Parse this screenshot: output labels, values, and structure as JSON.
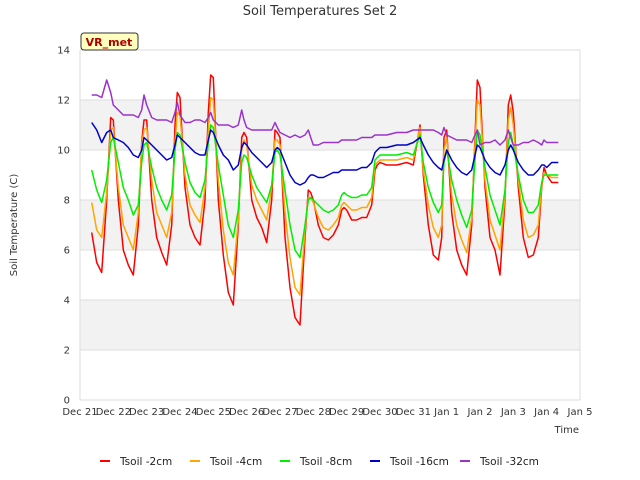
{
  "chart_data": {
    "type": "line",
    "title": "Soil Temperatures Set 2",
    "xlabel": "Time",
    "ylabel": "Soil Temperature (C)",
    "badge": "VR_met",
    "xlim": [
      0,
      15
    ],
    "ylim": [
      0,
      14
    ],
    "yticks": [
      0,
      2,
      4,
      6,
      8,
      10,
      12,
      14
    ],
    "xtick_labels": [
      "Dec 21",
      "Dec 22",
      "Dec 23",
      "Dec 24",
      "Dec 25",
      "Dec 26",
      "Dec 27",
      "Dec 28",
      "Dec 29",
      "Dec 30",
      "Dec 31",
      "Jan 1",
      "Jan 2",
      "Jan 3",
      "Jan 4",
      "Jan 5"
    ],
    "grid": true,
    "legend_position": "bottom",
    "colors": {
      "band": "#f2f2f2",
      "grid": "#dddddd",
      "badge_bg": "#ffffc0"
    },
    "series": [
      {
        "name": "Tsoil -2cm",
        "color": "#ff0000",
        "x": [
          0.35,
          0.5,
          0.65,
          0.8,
          0.92,
          1.0,
          1.15,
          1.3,
          1.45,
          1.6,
          1.75,
          1.85,
          1.92,
          2.0,
          2.15,
          2.3,
          2.45,
          2.6,
          2.75,
          2.85,
          2.92,
          3.0,
          3.15,
          3.3,
          3.45,
          3.6,
          3.75,
          3.85,
          3.92,
          4.0,
          4.15,
          4.3,
          4.45,
          4.6,
          4.75,
          4.85,
          4.92,
          5.0,
          5.15,
          5.3,
          5.45,
          5.6,
          5.75,
          5.85,
          5.92,
          6.0,
          6.15,
          6.3,
          6.45,
          6.6,
          6.75,
          6.85,
          6.92,
          7.0,
          7.15,
          7.3,
          7.45,
          7.6,
          7.75,
          7.85,
          7.92,
          8.0,
          8.15,
          8.3,
          8.45,
          8.6,
          8.75,
          8.85,
          8.92,
          9.0,
          9.2,
          9.5,
          9.8,
          10.0,
          10.2,
          10.3,
          10.45,
          10.6,
          10.75,
          10.85,
          10.92,
          11.0,
          11.15,
          11.3,
          11.45,
          11.6,
          11.75,
          11.85,
          11.92,
          12.0,
          12.15,
          12.3,
          12.45,
          12.6,
          12.75,
          12.85,
          12.92,
          13.0,
          13.15,
          13.3,
          13.45,
          13.6,
          13.75,
          13.85,
          13.92,
          14.0,
          14.15,
          14.35
        ],
        "y": [
          6.7,
          5.5,
          5.1,
          8.0,
          11.3,
          11.2,
          8.0,
          6.0,
          5.4,
          5.0,
          7.0,
          10.3,
          11.2,
          11.2,
          8.0,
          6.5,
          5.9,
          5.4,
          7.0,
          11.0,
          12.3,
          12.1,
          8.5,
          7.0,
          6.5,
          6.2,
          8.0,
          11.5,
          13.0,
          12.9,
          8.0,
          5.8,
          4.3,
          3.8,
          7.0,
          10.5,
          10.7,
          10.5,
          8.0,
          7.3,
          6.9,
          6.3,
          8.0,
          10.8,
          10.7,
          10.5,
          6.5,
          4.5,
          3.3,
          3.0,
          6.5,
          8.4,
          8.3,
          8.0,
          7.0,
          6.5,
          6.4,
          6.6,
          7.0,
          7.6,
          7.7,
          7.6,
          7.2,
          7.2,
          7.3,
          7.3,
          7.8,
          9.2,
          9.4,
          9.5,
          9.4,
          9.4,
          9.5,
          9.4,
          11.0,
          9.0,
          7.0,
          5.8,
          5.6,
          6.5,
          10.5,
          10.8,
          7.5,
          6.0,
          5.4,
          5.0,
          7.0,
          10.5,
          12.8,
          12.5,
          8.5,
          6.5,
          6.0,
          5.0,
          8.0,
          11.8,
          12.2,
          11.5,
          8.5,
          6.5,
          5.7,
          5.8,
          6.5,
          8.5,
          9.3,
          9.0,
          8.7,
          8.7
        ]
      },
      {
        "name": "Tsoil -4cm",
        "color": "#ffa500",
        "x": [
          0.35,
          0.5,
          0.65,
          0.8,
          0.92,
          1.0,
          1.15,
          1.3,
          1.45,
          1.6,
          1.75,
          1.85,
          1.92,
          2.0,
          2.15,
          2.3,
          2.45,
          2.6,
          2.75,
          2.85,
          2.92,
          3.0,
          3.15,
          3.3,
          3.45,
          3.6,
          3.75,
          3.85,
          3.92,
          4.0,
          4.15,
          4.3,
          4.45,
          4.6,
          4.75,
          4.85,
          4.92,
          5.0,
          5.15,
          5.3,
          5.45,
          5.6,
          5.75,
          5.85,
          5.92,
          6.0,
          6.15,
          6.3,
          6.45,
          6.6,
          6.75,
          6.85,
          6.92,
          7.0,
          7.15,
          7.3,
          7.45,
          7.6,
          7.75,
          7.85,
          7.92,
          8.0,
          8.15,
          8.3,
          8.45,
          8.6,
          8.75,
          8.85,
          8.92,
          9.0,
          9.2,
          9.5,
          9.8,
          10.0,
          10.2,
          10.3,
          10.45,
          10.6,
          10.75,
          10.85,
          10.92,
          11.0,
          11.15,
          11.3,
          11.45,
          11.6,
          11.75,
          11.85,
          11.92,
          12.0,
          12.15,
          12.3,
          12.45,
          12.6,
          12.75,
          12.85,
          12.92,
          13.0,
          13.15,
          13.3,
          13.45,
          13.6,
          13.75,
          13.85,
          13.92,
          14.0,
          14.15,
          14.35
        ],
        "y": [
          7.9,
          6.8,
          6.5,
          8.3,
          10.8,
          10.9,
          8.5,
          7.0,
          6.5,
          6.0,
          7.5,
          10.2,
          10.8,
          10.9,
          8.8,
          7.5,
          7.0,
          6.5,
          7.5,
          10.3,
          11.5,
          11.4,
          9.0,
          7.8,
          7.4,
          7.1,
          8.5,
          10.8,
          12.1,
          12.0,
          8.8,
          6.8,
          5.5,
          5.0,
          7.2,
          10.0,
          10.4,
          10.2,
          8.6,
          8.0,
          7.6,
          7.2,
          8.5,
          10.4,
          10.4,
          10.2,
          7.5,
          5.7,
          4.5,
          4.2,
          6.8,
          8.1,
          8.1,
          7.9,
          7.3,
          6.9,
          6.8,
          7.0,
          7.3,
          7.8,
          7.9,
          7.8,
          7.6,
          7.6,
          7.7,
          7.7,
          8.1,
          9.4,
          9.5,
          9.6,
          9.6,
          9.6,
          9.7,
          9.6,
          10.9,
          9.2,
          7.8,
          6.9,
          6.5,
          7.0,
          10.0,
          10.5,
          8.2,
          7.0,
          6.4,
          5.9,
          7.3,
          10.2,
          12.0,
          11.8,
          8.8,
          7.2,
          6.6,
          6.0,
          8.2,
          11.2,
          11.7,
          11.0,
          8.8,
          7.2,
          6.5,
          6.6,
          7.0,
          8.6,
          9.1,
          9.0,
          8.9,
          8.9
        ]
      },
      {
        "name": "Tsoil -8cm",
        "color": "#00ee00",
        "x": [
          0.35,
          0.5,
          0.65,
          0.8,
          0.92,
          1.0,
          1.15,
          1.3,
          1.45,
          1.6,
          1.75,
          1.85,
          1.92,
          2.0,
          2.15,
          2.3,
          2.45,
          2.6,
          2.75,
          2.85,
          2.92,
          3.0,
          3.15,
          3.3,
          3.45,
          3.6,
          3.75,
          3.85,
          3.92,
          4.0,
          4.15,
          4.3,
          4.45,
          4.6,
          4.75,
          4.85,
          4.92,
          5.0,
          5.15,
          5.3,
          5.45,
          5.6,
          5.75,
          5.85,
          5.92,
          6.0,
          6.15,
          6.3,
          6.45,
          6.6,
          6.75,
          6.85,
          6.92,
          7.0,
          7.15,
          7.3,
          7.45,
          7.6,
          7.75,
          7.85,
          7.92,
          8.0,
          8.15,
          8.3,
          8.45,
          8.6,
          8.75,
          8.85,
          8.92,
          9.0,
          9.2,
          9.5,
          9.8,
          10.0,
          10.2,
          10.3,
          10.45,
          10.6,
          10.75,
          10.85,
          10.92,
          11.0,
          11.15,
          11.3,
          11.45,
          11.6,
          11.75,
          11.85,
          11.92,
          12.0,
          12.15,
          12.3,
          12.45,
          12.6,
          12.75,
          12.85,
          12.92,
          13.0,
          13.15,
          13.3,
          13.45,
          13.6,
          13.75,
          13.85,
          13.92,
          14.0,
          14.15,
          14.35
        ],
        "y": [
          9.2,
          8.4,
          7.9,
          8.8,
          10.3,
          10.5,
          9.5,
          8.5,
          8.0,
          7.4,
          7.8,
          9.5,
          10.2,
          10.3,
          9.3,
          8.5,
          8.0,
          7.6,
          8.2,
          10.0,
          10.7,
          10.6,
          9.5,
          8.7,
          8.3,
          8.1,
          8.8,
          10.3,
          11.0,
          10.9,
          9.4,
          8.2,
          7.0,
          6.5,
          7.6,
          9.5,
          9.8,
          9.7,
          9.0,
          8.5,
          8.2,
          7.9,
          8.6,
          9.9,
          10.0,
          9.8,
          8.4,
          7.0,
          6.0,
          5.7,
          7.0,
          8.0,
          8.1,
          8.0,
          7.8,
          7.6,
          7.5,
          7.6,
          7.8,
          8.2,
          8.3,
          8.2,
          8.1,
          8.1,
          8.2,
          8.2,
          8.5,
          9.6,
          9.7,
          9.8,
          9.8,
          9.8,
          9.9,
          9.8,
          10.6,
          9.5,
          8.5,
          7.9,
          7.5,
          7.8,
          9.5,
          10.0,
          8.8,
          8.0,
          7.4,
          6.9,
          7.6,
          9.6,
          10.8,
          10.6,
          9.3,
          8.2,
          7.6,
          7.0,
          8.4,
          10.3,
          10.7,
          10.2,
          9.0,
          8.0,
          7.5,
          7.5,
          7.8,
          8.7,
          9.0,
          9.0,
          9.0,
          9.0
        ]
      },
      {
        "name": "Tsoil -16cm",
        "color": "#0000cc",
        "x": [
          0.35,
          0.5,
          0.65,
          0.8,
          0.92,
          1.0,
          1.15,
          1.3,
          1.45,
          1.6,
          1.75,
          1.85,
          1.92,
          2.0,
          2.15,
          2.3,
          2.45,
          2.6,
          2.75,
          2.85,
          2.92,
          3.0,
          3.15,
          3.3,
          3.45,
          3.6,
          3.75,
          3.85,
          3.92,
          4.0,
          4.15,
          4.3,
          4.45,
          4.6,
          4.75,
          4.85,
          4.92,
          5.0,
          5.15,
          5.3,
          5.45,
          5.6,
          5.75,
          5.85,
          5.92,
          6.0,
          6.15,
          6.3,
          6.45,
          6.6,
          6.75,
          6.85,
          6.92,
          7.0,
          7.15,
          7.3,
          7.45,
          7.6,
          7.75,
          7.85,
          7.92,
          8.0,
          8.15,
          8.3,
          8.45,
          8.6,
          8.75,
          8.85,
          8.92,
          9.0,
          9.2,
          9.5,
          9.8,
          10.0,
          10.2,
          10.3,
          10.45,
          10.6,
          10.75,
          10.85,
          10.92,
          11.0,
          11.15,
          11.3,
          11.45,
          11.6,
          11.75,
          11.85,
          11.92,
          12.0,
          12.15,
          12.3,
          12.45,
          12.6,
          12.75,
          12.85,
          12.92,
          13.0,
          13.15,
          13.3,
          13.45,
          13.6,
          13.75,
          13.85,
          13.92,
          14.0,
          14.15,
          14.35
        ],
        "y": [
          11.1,
          10.8,
          10.3,
          10.7,
          10.8,
          10.5,
          10.4,
          10.3,
          10.1,
          9.8,
          9.7,
          10.0,
          10.5,
          10.4,
          10.2,
          10.0,
          9.8,
          9.6,
          9.7,
          10.2,
          10.6,
          10.5,
          10.3,
          10.1,
          9.9,
          9.8,
          9.8,
          10.4,
          10.8,
          10.7,
          10.2,
          9.8,
          9.6,
          9.2,
          9.4,
          10.1,
          10.3,
          10.2,
          9.9,
          9.7,
          9.5,
          9.3,
          9.5,
          10.0,
          10.1,
          10.0,
          9.5,
          9.0,
          8.7,
          8.6,
          8.7,
          8.9,
          9.0,
          9.0,
          8.9,
          8.9,
          9.0,
          9.1,
          9.1,
          9.2,
          9.2,
          9.2,
          9.2,
          9.2,
          9.3,
          9.3,
          9.5,
          9.9,
          10.0,
          10.1,
          10.1,
          10.2,
          10.2,
          10.3,
          10.5,
          10.2,
          9.8,
          9.5,
          9.3,
          9.2,
          9.6,
          10.0,
          9.6,
          9.3,
          9.1,
          9.0,
          9.2,
          9.8,
          10.2,
          10.1,
          9.6,
          9.3,
          9.1,
          9.0,
          9.4,
          10.0,
          10.2,
          10.0,
          9.5,
          9.2,
          9.0,
          9.0,
          9.2,
          9.4,
          9.4,
          9.3,
          9.5,
          9.5
        ]
      },
      {
        "name": "Tsoil -32cm",
        "color": "#9933cc",
        "x": [
          0.35,
          0.5,
          0.65,
          0.8,
          0.92,
          1.0,
          1.15,
          1.3,
          1.45,
          1.6,
          1.75,
          1.85,
          1.92,
          2.0,
          2.15,
          2.3,
          2.45,
          2.6,
          2.75,
          2.85,
          2.92,
          3.0,
          3.15,
          3.3,
          3.45,
          3.6,
          3.75,
          3.85,
          3.92,
          4.0,
          4.15,
          4.3,
          4.45,
          4.6,
          4.75,
          4.85,
          4.92,
          5.0,
          5.15,
          5.3,
          5.45,
          5.6,
          5.75,
          5.85,
          5.92,
          6.0,
          6.15,
          6.3,
          6.45,
          6.6,
          6.75,
          6.85,
          6.92,
          7.0,
          7.15,
          7.3,
          7.45,
          7.6,
          7.75,
          7.85,
          7.92,
          8.0,
          8.15,
          8.3,
          8.45,
          8.6,
          8.75,
          8.85,
          8.92,
          9.0,
          9.2,
          9.5,
          9.8,
          10.0,
          10.2,
          10.3,
          10.45,
          10.6,
          10.75,
          10.85,
          10.92,
          11.0,
          11.15,
          11.3,
          11.45,
          11.6,
          11.75,
          11.85,
          11.92,
          12.0,
          12.15,
          12.3,
          12.45,
          12.6,
          12.75,
          12.85,
          12.92,
          13.0,
          13.15,
          13.3,
          13.45,
          13.6,
          13.75,
          13.85,
          13.92,
          14.0,
          14.15,
          14.35
        ],
        "y": [
          12.2,
          12.2,
          12.1,
          12.8,
          12.3,
          11.8,
          11.6,
          11.4,
          11.4,
          11.4,
          11.3,
          11.6,
          12.2,
          11.8,
          11.3,
          11.2,
          11.2,
          11.2,
          11.1,
          11.5,
          11.9,
          11.4,
          11.1,
          11.1,
          11.2,
          11.2,
          11.1,
          11.3,
          11.5,
          11.2,
          11.0,
          11.0,
          11.0,
          10.9,
          11.0,
          11.6,
          11.2,
          10.9,
          10.8,
          10.8,
          10.8,
          10.8,
          10.8,
          11.1,
          10.9,
          10.7,
          10.6,
          10.5,
          10.6,
          10.5,
          10.6,
          10.8,
          10.5,
          10.2,
          10.2,
          10.3,
          10.3,
          10.3,
          10.3,
          10.4,
          10.4,
          10.4,
          10.4,
          10.4,
          10.5,
          10.5,
          10.5,
          10.6,
          10.6,
          10.6,
          10.6,
          10.7,
          10.7,
          10.8,
          10.8,
          10.8,
          10.8,
          10.8,
          10.7,
          10.6,
          10.9,
          10.6,
          10.5,
          10.4,
          10.4,
          10.4,
          10.3,
          10.6,
          10.8,
          10.2,
          10.3,
          10.3,
          10.4,
          10.2,
          10.4,
          10.8,
          10.5,
          10.2,
          10.2,
          10.3,
          10.3,
          10.4,
          10.3,
          10.2,
          10.4,
          10.3,
          10.3,
          10.3
        ]
      }
    ]
  }
}
